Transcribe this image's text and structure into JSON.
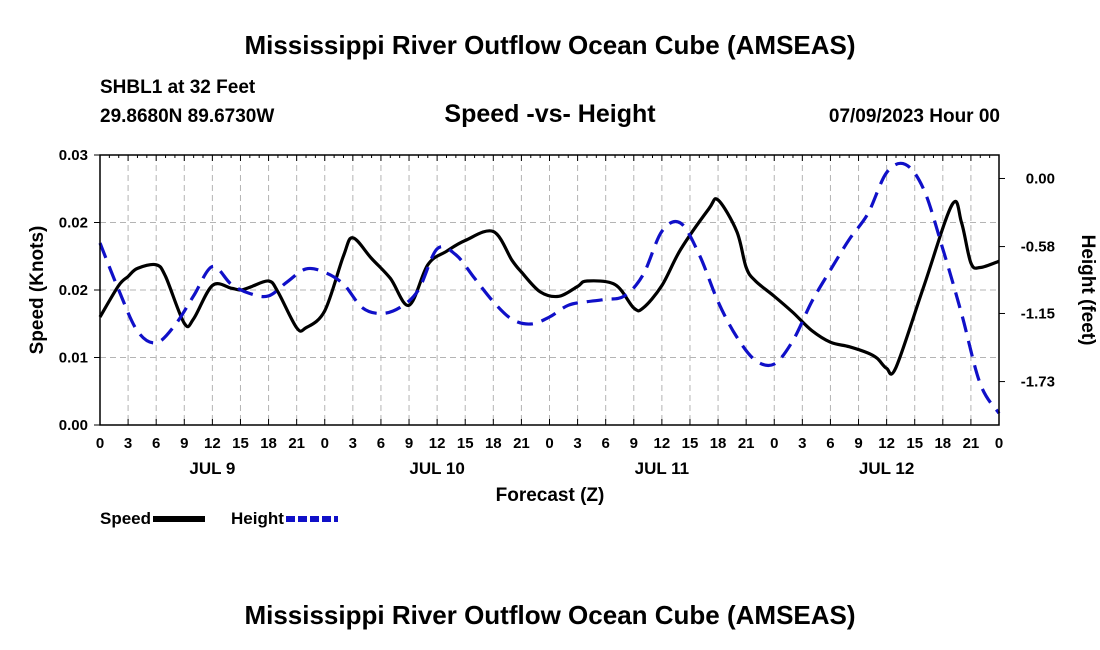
{
  "header": {
    "title": "Mississippi River Outflow Ocean Cube (AMSEAS)",
    "station": "SHBL1 at 32 Feet",
    "coordinates": "29.8680N  89.6730W",
    "subtitle": "Speed -vs- Height",
    "timestamp": "07/09/2023 Hour 00"
  },
  "footer": {
    "title": "Mississippi River Outflow Ocean Cube (AMSEAS)"
  },
  "legend": {
    "speed_label": "Speed",
    "height_label": "Height"
  },
  "chart_data": {
    "type": "line",
    "xlabel": "Forecast (Z)",
    "ylabel_left": "Speed (Knots)",
    "ylabel_right": "Height (feet)",
    "x_range": [
      0,
      96
    ],
    "y_left_range": [
      0.0,
      0.03
    ],
    "y_right_range": [
      -2.1,
      0.2
    ],
    "y_left_ticks": [
      "0.00",
      "0.01",
      "0.02",
      "0.02",
      "0.03"
    ],
    "y_left_tick_values": [
      0.0,
      0.0075,
      0.015,
      0.0225,
      0.03
    ],
    "y_right_ticks": [
      "0.00",
      "-0.58",
      "-1.15",
      "-1.73"
    ],
    "y_right_tick_values": [
      0.0,
      -0.58,
      -1.15,
      -1.73
    ],
    "x_tick_labels": [
      "0",
      "3",
      "6",
      "9",
      "12",
      "15",
      "18",
      "21",
      "0",
      "3",
      "6",
      "9",
      "12",
      "15",
      "18",
      "21",
      "0",
      "3",
      "6",
      "9",
      "12",
      "15",
      "18",
      "21",
      "0",
      "3",
      "6",
      "9",
      "12",
      "15",
      "18",
      "21",
      "0"
    ],
    "day_labels": [
      {
        "label": "JUL 9",
        "hour": 12
      },
      {
        "label": "JUL 10",
        "hour": 36
      },
      {
        "label": "JUL 11",
        "hour": 60
      },
      {
        "label": "JUL 12",
        "hour": 84
      }
    ],
    "series": [
      {
        "name": "Speed",
        "axis": "left",
        "color": "#000000",
        "x": [
          0,
          2,
          3,
          4,
          6,
          7,
          9,
          10,
          12,
          14,
          15,
          16,
          18,
          19,
          21,
          22,
          24,
          26,
          27,
          29,
          31,
          33,
          35,
          37,
          39,
          42,
          44,
          45,
          47,
          49,
          51,
          52,
          55,
          57,
          58,
          60,
          62,
          65,
          66,
          68,
          69,
          70,
          72,
          74,
          76,
          78,
          80,
          82,
          83,
          84,
          85,
          88,
          91,
          92,
          93,
          94,
          96
        ],
        "y": [
          0.012,
          0.0155,
          0.0165,
          0.0174,
          0.0178,
          0.0165,
          0.0113,
          0.0118,
          0.0155,
          0.0152,
          0.015,
          0.0153,
          0.016,
          0.0148,
          0.0108,
          0.0108,
          0.0127,
          0.0188,
          0.0208,
          0.0185,
          0.0163,
          0.0133,
          0.0178,
          0.0193,
          0.0205,
          0.0215,
          0.0183,
          0.017,
          0.0148,
          0.0143,
          0.0154,
          0.016,
          0.0156,
          0.013,
          0.013,
          0.0155,
          0.0195,
          0.024,
          0.025,
          0.0215,
          0.0175,
          0.016,
          0.0143,
          0.0125,
          0.0105,
          0.0092,
          0.0087,
          0.008,
          0.0074,
          0.0063,
          0.0064,
          0.0155,
          0.0245,
          0.0225,
          0.018,
          0.0175,
          0.0182
        ]
      },
      {
        "name": "Height",
        "axis": "right",
        "color": "#1010c8",
        "x": [
          0,
          2,
          4,
          6,
          8,
          10,
          12,
          14,
          16,
          18,
          20,
          22,
          24,
          26,
          28,
          30,
          32,
          34,
          36,
          38,
          40,
          42,
          44,
          46,
          48,
          50,
          52,
          54,
          56,
          58,
          60,
          62,
          64,
          66,
          68,
          70,
          72,
          74,
          76,
          78,
          80,
          82,
          84,
          86,
          88,
          90,
          92,
          94,
          96
        ],
        "y": [
          -0.55,
          -0.95,
          -1.3,
          -1.4,
          -1.25,
          -1.0,
          -0.75,
          -0.9,
          -0.98,
          -1.0,
          -0.88,
          -0.77,
          -0.8,
          -0.9,
          -1.1,
          -1.15,
          -1.1,
          -0.95,
          -0.6,
          -0.65,
          -0.85,
          -1.05,
          -1.2,
          -1.24,
          -1.18,
          -1.08,
          -1.05,
          -1.03,
          -1.0,
          -0.82,
          -0.45,
          -0.38,
          -0.65,
          -1.05,
          -1.35,
          -1.55,
          -1.58,
          -1.38,
          -1.05,
          -0.78,
          -0.52,
          -0.3,
          0.05,
          0.12,
          -0.1,
          -0.6,
          -1.15,
          -1.75,
          -2.0
        ]
      }
    ]
  }
}
